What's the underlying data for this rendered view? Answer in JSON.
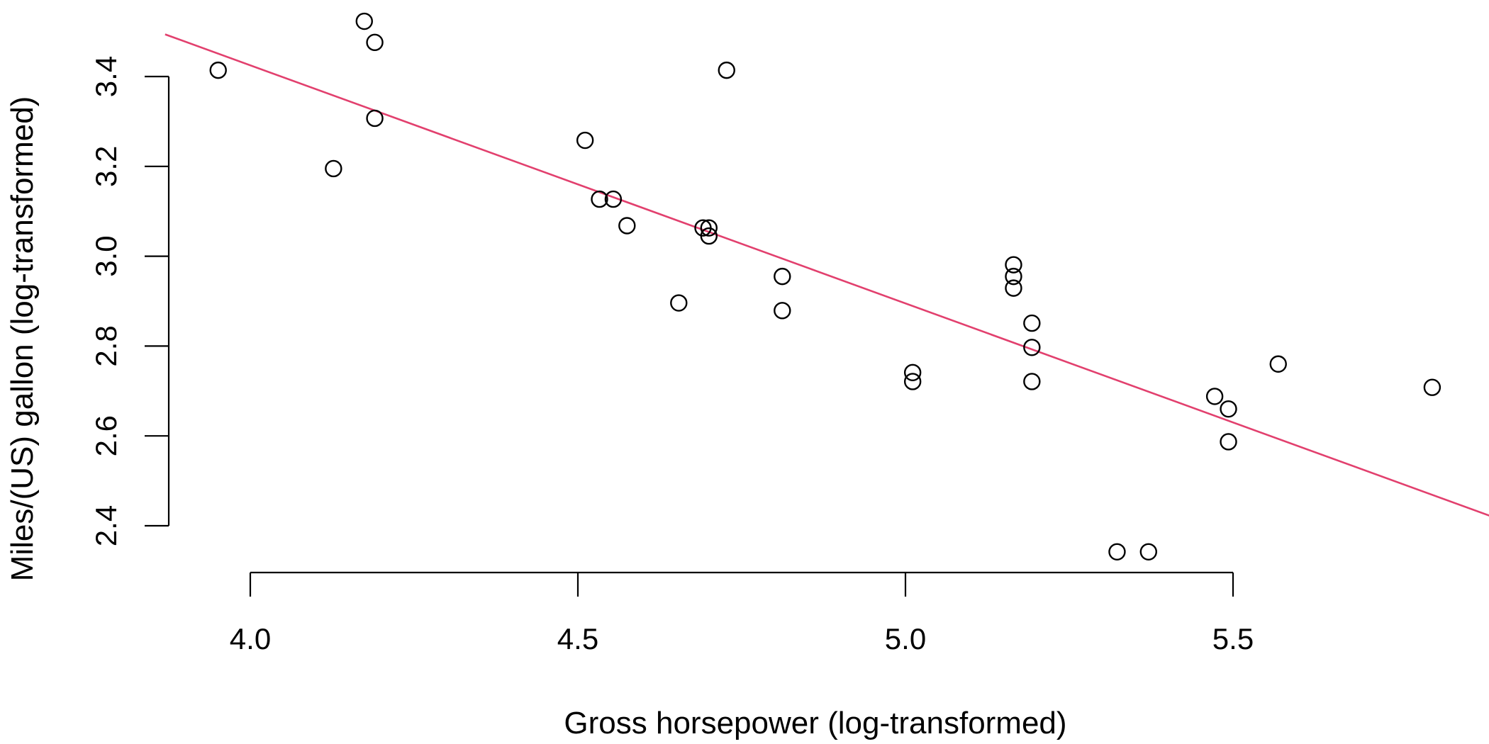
{
  "chart_data": {
    "type": "scatter",
    "title": "",
    "xlabel": "Gross horsepower (log-transformed)",
    "ylabel": "Miles/(US) gallon (log-transformed)",
    "xlim": [
      3.87,
      5.92
    ],
    "ylim": [
      2.3,
      3.56
    ],
    "x_ticks": [
      4.0,
      4.5,
      5.0,
      5.5
    ],
    "x_tick_labels": [
      "4.0",
      "4.5",
      "5.0",
      "5.5"
    ],
    "y_ticks": [
      2.4,
      2.6,
      2.8,
      3.0,
      3.2,
      3.4
    ],
    "y_tick_labels": [
      "2.4",
      "2.6",
      "2.8",
      "3.0",
      "3.2",
      "3.4"
    ],
    "grid": false,
    "points": [
      {
        "x": 3.951,
        "y": 3.414
      },
      {
        "x": 4.127,
        "y": 3.195
      },
      {
        "x": 4.174,
        "y": 3.523
      },
      {
        "x": 4.19,
        "y": 3.476
      },
      {
        "x": 4.19,
        "y": 3.307
      },
      {
        "x": 4.511,
        "y": 3.258
      },
      {
        "x": 4.533,
        "y": 3.127
      },
      {
        "x": 4.554,
        "y": 3.127
      },
      {
        "x": 4.575,
        "y": 3.068
      },
      {
        "x": 4.654,
        "y": 2.896
      },
      {
        "x": 4.691,
        "y": 3.063
      },
      {
        "x": 4.7,
        "y": 3.063
      },
      {
        "x": 4.7,
        "y": 3.045
      },
      {
        "x": 4.727,
        "y": 3.414
      },
      {
        "x": 4.812,
        "y": 2.955
      },
      {
        "x": 4.812,
        "y": 2.879
      },
      {
        "x": 5.011,
        "y": 2.741
      },
      {
        "x": 5.011,
        "y": 2.721
      },
      {
        "x": 5.165,
        "y": 2.981
      },
      {
        "x": 5.165,
        "y": 2.955
      },
      {
        "x": 5.165,
        "y": 2.929
      },
      {
        "x": 5.193,
        "y": 2.851
      },
      {
        "x": 5.193,
        "y": 2.797
      },
      {
        "x": 5.193,
        "y": 2.721
      },
      {
        "x": 5.323,
        "y": 2.342
      },
      {
        "x": 5.371,
        "y": 2.342
      },
      {
        "x": 5.472,
        "y": 2.688
      },
      {
        "x": 5.493,
        "y": 2.66
      },
      {
        "x": 5.493,
        "y": 2.587
      },
      {
        "x": 5.569,
        "y": 2.76
      },
      {
        "x": 5.804,
        "y": 2.708
      }
    ],
    "fit_line": {
      "intercept": 5.545,
      "slope": -0.53
    },
    "colors": {
      "points": "#000000",
      "fit_line": "#e2406e",
      "axes": "#000000"
    }
  }
}
